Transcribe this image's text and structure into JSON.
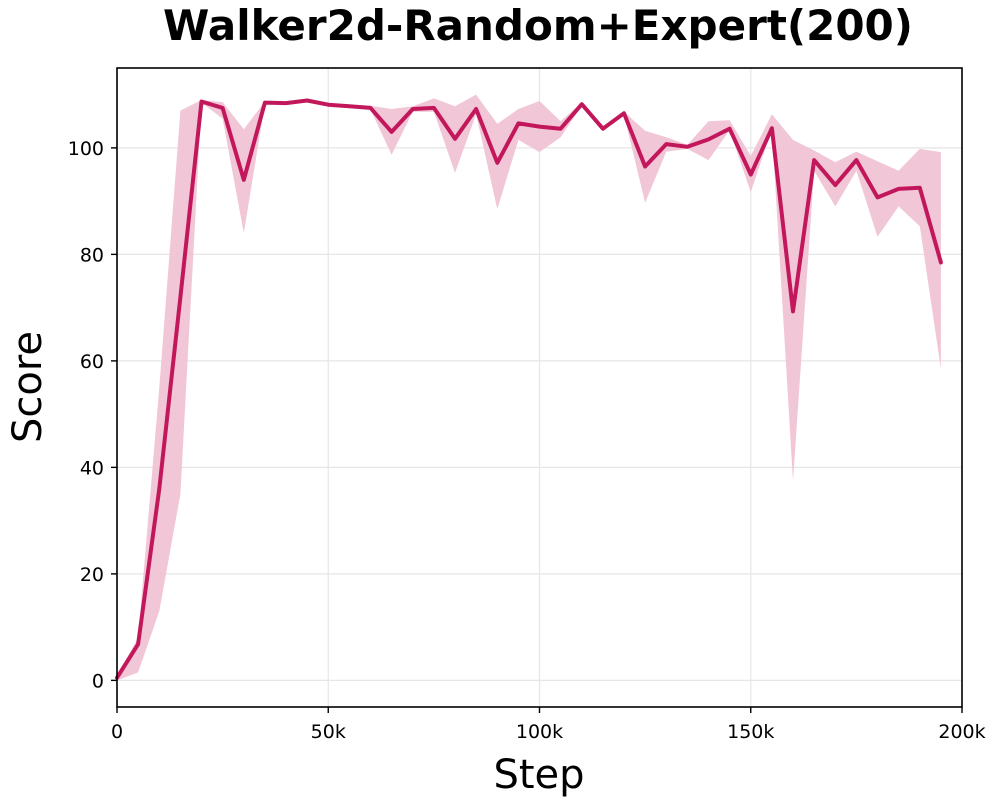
{
  "chart_data": {
    "type": "line",
    "title": "Walker2d-Random+Expert(200)",
    "xlabel": "Step",
    "ylabel": "Score",
    "xlim": [
      0,
      200000
    ],
    "ylim": [
      -5,
      115
    ],
    "grid": true,
    "x_ticks": [
      0,
      50000,
      100000,
      150000,
      200000
    ],
    "x_tick_labels": [
      "0",
      "50k",
      "100k",
      "150k",
      "200k"
    ],
    "y_ticks": [
      0,
      20,
      40,
      60,
      80,
      100
    ],
    "y_tick_labels": [
      "0",
      "20",
      "40",
      "60",
      "80",
      "100"
    ],
    "colors": {
      "line": "#c2185b",
      "band": "#f0c3d4"
    },
    "series": [
      {
        "x": [
          0,
          5000,
          10000,
          15000,
          20000,
          25000,
          30000,
          35000,
          40000,
          45000,
          50000,
          55000,
          60000,
          65000,
          70000,
          75000,
          80000,
          85000,
          90000,
          95000,
          100000,
          105000,
          110000,
          115000,
          120000,
          125000,
          130000,
          135000,
          140000,
          145000,
          150000,
          155000,
          160000,
          165000,
          170000,
          175000,
          180000,
          185000,
          190000,
          195000
        ],
        "y": [
          0.5,
          6.8,
          36,
          72,
          108.7,
          107.5,
          94,
          108.5,
          108.4,
          108.9,
          108.1,
          107.8,
          107.5,
          103,
          107.3,
          107.5,
          101.7,
          107.3,
          97.2,
          104.6,
          104,
          103.6,
          108.2,
          103.6,
          106.5,
          96.5,
          100.7,
          100.2,
          101.6,
          103.6,
          95,
          103.7,
          69.3,
          97.7,
          93,
          97.7,
          90.7,
          92.3,
          92.5,
          78.5
        ],
        "lower": [
          0,
          1.5,
          13,
          35,
          108.5,
          105.5,
          84,
          108.3,
          108.2,
          108.7,
          107.9,
          107.5,
          107.2,
          98.7,
          106.8,
          106.8,
          95.3,
          106.3,
          88.5,
          101.5,
          99.2,
          102,
          107.9,
          103.3,
          106.2,
          89.7,
          99.3,
          99.8,
          97.7,
          103.3,
          91.7,
          103.5,
          37.5,
          95.7,
          89,
          95.7,
          83.3,
          89,
          85.3,
          58.5
        ],
        "upper": [
          1,
          8,
          55,
          107,
          109,
          108.6,
          103.5,
          108.7,
          108.6,
          109.1,
          108.3,
          108.1,
          107.9,
          107.3,
          107.8,
          109.3,
          107.8,
          110,
          104.5,
          107.3,
          108.8,
          105,
          108.5,
          104,
          106.8,
          103.2,
          102,
          100.6,
          105,
          105.2,
          98.5,
          106.3,
          101.5,
          99.5,
          97.3,
          99.3,
          97.5,
          95.7,
          99.8,
          99.2
        ]
      }
    ]
  }
}
